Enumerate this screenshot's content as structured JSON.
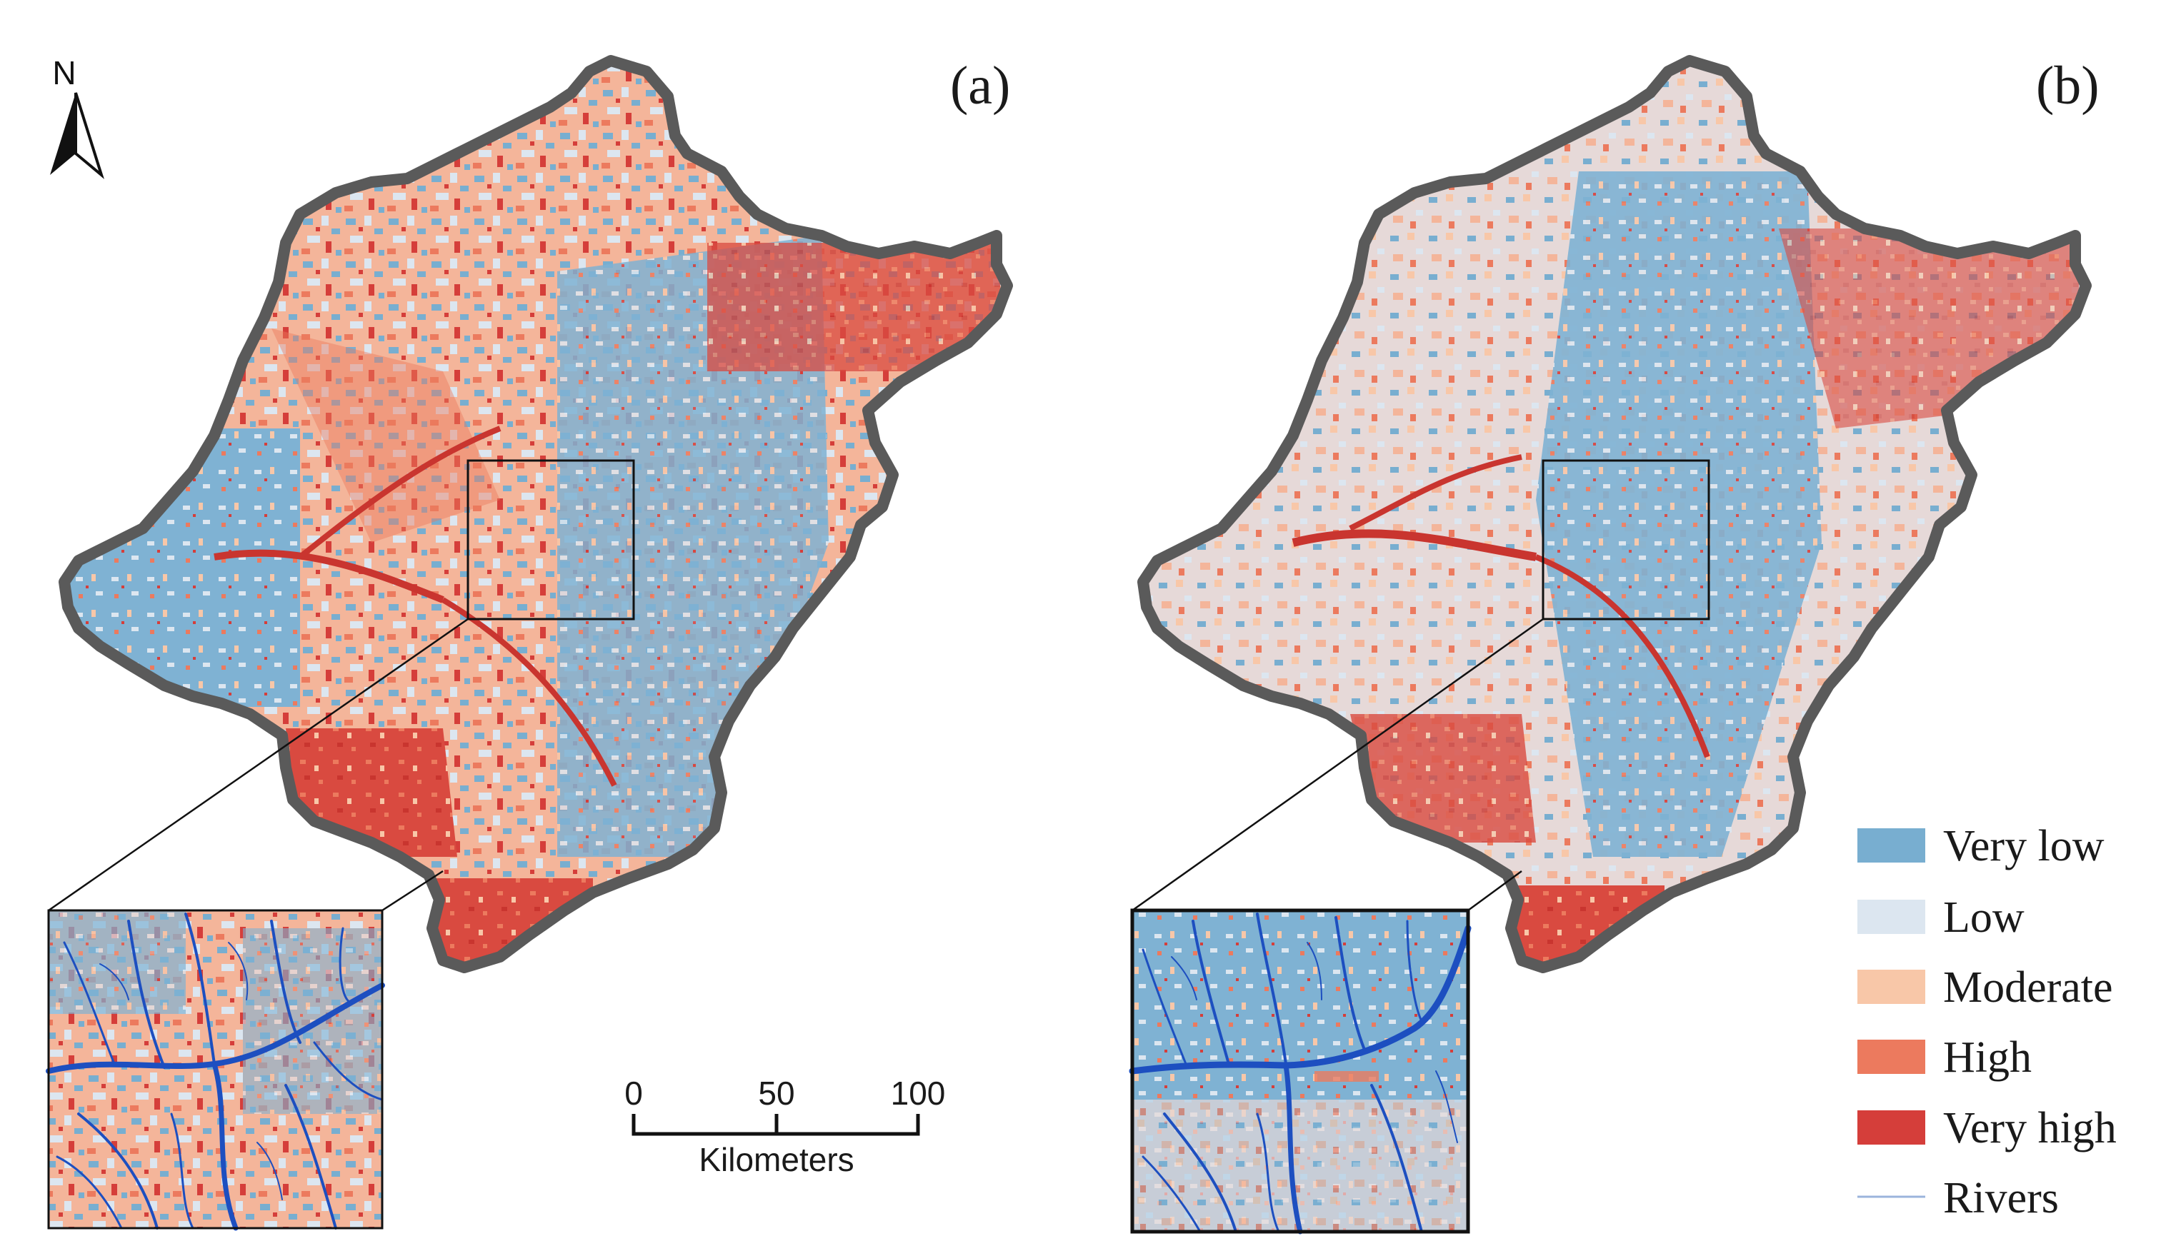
{
  "panels": [
    {
      "label": "(a)"
    },
    {
      "label": "(b)"
    }
  ],
  "north_arrow": {
    "letter": "N"
  },
  "scale_bar": {
    "ticks": [
      "0",
      "50",
      "100"
    ],
    "unit": "Kilometers"
  },
  "legend": {
    "items": [
      {
        "label": "Very low",
        "color": "#78aed0"
      },
      {
        "label": "Low",
        "color": "#dce6f0"
      },
      {
        "label": "Moderate",
        "color": "#f8c7a8"
      },
      {
        "label": "High",
        "color": "#ec7a5e"
      },
      {
        "label": "Very high",
        "color": "#d53e3a"
      }
    ],
    "rivers": {
      "label": "Rivers",
      "color": "#9bb4dc"
    }
  },
  "colors": {
    "boundary": "#5a5a5a",
    "river": "#1d4fc0",
    "frame": "#111111"
  }
}
